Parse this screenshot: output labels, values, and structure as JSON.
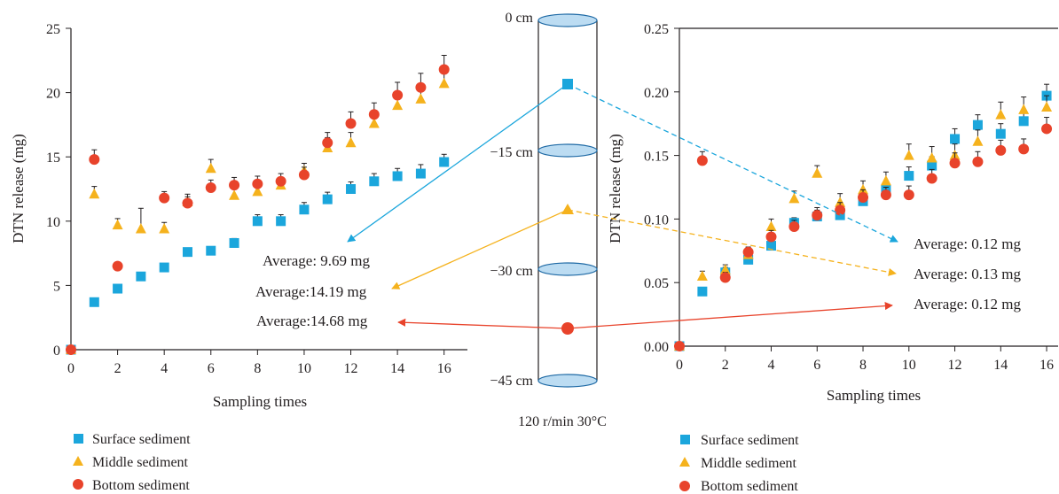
{
  "colors": {
    "surface": "#1ba6dc",
    "middle": "#f5b21d",
    "bottom": "#e8432b",
    "axis": "#231f20",
    "cylinder_fill": "#bcdcf2",
    "cylinder_stroke": "#1f6aa5"
  },
  "legend": [
    "Surface sediment",
    "Middle sediment",
    "Bottom sediment"
  ],
  "column": {
    "depth_labels": [
      "0 cm",
      "−15 cm",
      "−30 cm",
      "−45 cm"
    ],
    "condition": "120 r/min 30°C"
  },
  "annotations_left": [
    "Average: 9.69 mg",
    "Average:14.19 mg",
    "Average:14.68 mg"
  ],
  "annotations_right": [
    "Average: 0.12 mg",
    "Average: 0.13 mg",
    "Average: 0.12 mg"
  ],
  "chart_data": [
    {
      "type": "scatter",
      "xlabel": "Sampling times",
      "ylabel": "DTN release (mg)",
      "xlim": [
        0,
        17
      ],
      "ylim": [
        0,
        25
      ],
      "xticks": [
        0,
        2,
        4,
        6,
        8,
        10,
        12,
        14,
        16
      ],
      "xtick_labels": [
        "0",
        "2",
        "4",
        "6",
        "8",
        "10",
        "12",
        "14",
        "16"
      ],
      "yticks": [
        0,
        5,
        10,
        15,
        20,
        25
      ],
      "ytick_labels": [
        "0",
        "5",
        "10",
        "15",
        "20",
        "25"
      ],
      "grid": false,
      "legend_position": "bottom",
      "x": [
        0,
        1,
        2,
        3,
        4,
        5,
        6,
        7,
        8,
        9,
        10,
        11,
        12,
        13,
        14,
        15,
        16
      ],
      "series": [
        {
          "name": "Surface sediment",
          "marker": "square",
          "values": [
            0,
            3.7,
            4.75,
            5.7,
            6.4,
            7.6,
            7.7,
            8.3,
            10.0,
            10.0,
            10.9,
            11.7,
            12.5,
            13.1,
            13.5,
            13.7,
            14.6
          ],
          "errors": [
            0,
            0,
            0,
            0,
            0,
            0,
            0,
            0.35,
            0.5,
            0.5,
            0.55,
            0.55,
            0.55,
            0.6,
            0.6,
            0.7,
            0.6
          ]
        },
        {
          "name": "Middle sediment",
          "marker": "triangle",
          "values": [
            0,
            12.1,
            9.7,
            9.4,
            9.4,
            11.5,
            14.1,
            12.0,
            12.3,
            12.8,
            13.9,
            15.7,
            16.1,
            17.6,
            19.0,
            19.5,
            20.7
          ],
          "errors": [
            0,
            0.6,
            0.5,
            1.6,
            0.5,
            0.6,
            0.7,
            0.5,
            0.5,
            0.5,
            0.6,
            0.8,
            0.8,
            0.8,
            1.0,
            1.1,
            1.0
          ]
        },
        {
          "name": "Bottom sediment",
          "marker": "circle",
          "values": [
            0,
            14.8,
            6.5,
            0,
            11.8,
            11.4,
            12.6,
            12.8,
            12.9,
            13.1,
            13.6,
            16.1,
            17.6,
            18.3,
            19.8,
            20.4,
            21.8
          ],
          "present": [
            1,
            1,
            1,
            0,
            1,
            1,
            1,
            1,
            1,
            1,
            1,
            1,
            1,
            1,
            1,
            1,
            1
          ],
          "errors": [
            0,
            0.75,
            0,
            0,
            0.5,
            0.5,
            0.6,
            0.6,
            0.6,
            0.6,
            0.6,
            0.8,
            0.9,
            0.9,
            1.0,
            1.1,
            1.1
          ]
        }
      ]
    },
    {
      "type": "scatter",
      "xlabel": "Sampling times",
      "ylabel": "DTN release (mg)",
      "xlim": [
        0,
        16.5
      ],
      "ylim": [
        0,
        0.25
      ],
      "xticks": [
        0,
        2,
        4,
        6,
        8,
        10,
        12,
        14,
        16
      ],
      "xtick_labels": [
        "0",
        "2",
        "4",
        "6",
        "8",
        "10",
        "12",
        "14",
        "16"
      ],
      "yticks": [
        0,
        0.05,
        0.1,
        0.15,
        0.2,
        0.25
      ],
      "ytick_labels": [
        "0.00",
        "0.05",
        "0.10",
        "0.15",
        "0.20",
        "0.25"
      ],
      "grid": false,
      "legend_position": "bottom",
      "x": [
        0,
        1,
        2,
        3,
        4,
        5,
        6,
        7,
        8,
        9,
        10,
        11,
        12,
        13,
        14,
        15,
        16
      ],
      "series": [
        {
          "name": "Surface sediment",
          "marker": "square",
          "values": [
            0,
            0.043,
            0.058,
            0.068,
            0.079,
            0.097,
            0.102,
            0.103,
            0.114,
            0.123,
            0.134,
            0.142,
            0.163,
            0.174,
            0.167,
            0.177,
            0.197
          ],
          "errors": [
            0,
            0,
            0.004,
            0.003,
            0.004,
            0.004,
            0.005,
            0.006,
            0.006,
            0.006,
            0.007,
            0.007,
            0.008,
            0.008,
            0.008,
            0.009,
            0.009
          ]
        },
        {
          "name": "Middle sediment",
          "marker": "triangle",
          "values": [
            0,
            0.055,
            0.06,
            0.072,
            0.094,
            0.116,
            0.136,
            0.113,
            0.123,
            0.13,
            0.15,
            0.148,
            0.15,
            0.161,
            0.182,
            0.186,
            0.188
          ],
          "errors": [
            0,
            0.004,
            0.004,
            0.005,
            0.006,
            0.006,
            0.006,
            0.007,
            0.007,
            0.007,
            0.009,
            0.009,
            0.009,
            0.009,
            0.01,
            0.01,
            0.009
          ]
        },
        {
          "name": "Bottom sediment",
          "marker": "circle",
          "values": [
            0,
            0.146,
            0.054,
            0.074,
            0.086,
            0.094,
            0.103,
            0.107,
            0.117,
            0.119,
            0.119,
            0.132,
            0.144,
            0.145,
            0.154,
            0.155,
            0.171
          ],
          "errors": [
            0,
            0.007,
            0.004,
            0.004,
            0.005,
            0.005,
            0.006,
            0.006,
            0.006,
            0.006,
            0.007,
            0.007,
            0.008,
            0.008,
            0.008,
            0.008,
            0.009
          ]
        }
      ]
    }
  ]
}
